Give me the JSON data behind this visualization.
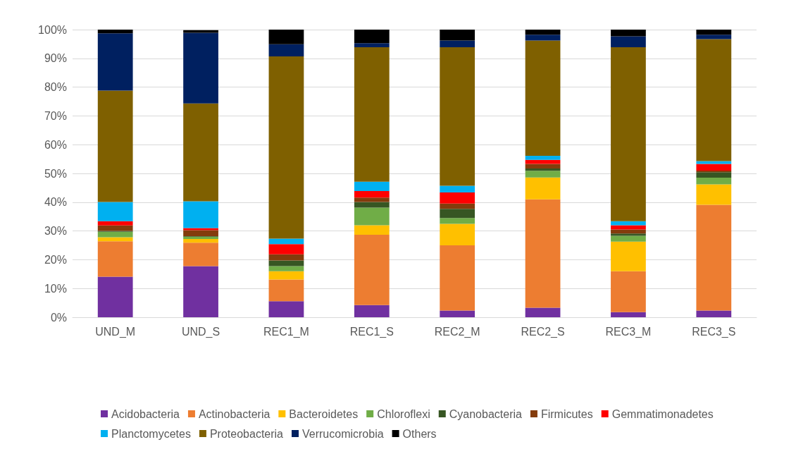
{
  "chart_data": {
    "type": "bar",
    "stacked": true,
    "categories": [
      "UND_M",
      "UND_S",
      "REC1_M",
      "REC1_S",
      "REC2_M",
      "REC2_S",
      "REC3_M",
      "REC3_S"
    ],
    "series": [
      {
        "name": "Acidobacteria",
        "color": "#7030a0",
        "values": [
          14.1,
          17.8,
          5.6,
          4.2,
          2.3,
          3.3,
          1.8,
          2.3
        ]
      },
      {
        "name": "Actinobacteria",
        "color": "#ed7d31",
        "values": [
          12.3,
          8.1,
          7.5,
          24.5,
          22.7,
          37.7,
          14.2,
          36.8
        ]
      },
      {
        "name": "Bacteroidetes",
        "color": "#ffc000",
        "values": [
          1.4,
          1.3,
          2.9,
          3.3,
          7.5,
          7.6,
          10.3,
          7.1
        ]
      },
      {
        "name": "Chloroflexi",
        "color": "#70ad47",
        "values": [
          1.9,
          0.8,
          1.8,
          6.1,
          2.0,
          2.3,
          2.0,
          2.3
        ]
      },
      {
        "name": "Cyanobacteria",
        "color": "#375623",
        "values": [
          0.3,
          0.2,
          1.9,
          2.0,
          3.2,
          0.8,
          0.8,
          1.9
        ]
      },
      {
        "name": "Firmicutes",
        "color": "#843c0c",
        "values": [
          1.9,
          2.1,
          2.2,
          1.5,
          1.8,
          1.6,
          1.4,
          0.6
        ]
      },
      {
        "name": "Gemmatimonadetes",
        "color": "#ff0000",
        "values": [
          1.5,
          0.7,
          3.5,
          2.3,
          3.9,
          1.4,
          1.5,
          2.3
        ]
      },
      {
        "name": "Planctomycetes",
        "color": "#00b0f0",
        "values": [
          6.7,
          9.3,
          1.9,
          3.2,
          2.3,
          1.4,
          1.4,
          1.0
        ]
      },
      {
        "name": "Proteobacteria",
        "color": "#7f6000",
        "values": [
          38.7,
          34.0,
          63.4,
          46.8,
          48.2,
          40.1,
          60.5,
          42.4
        ]
      },
      {
        "name": "Verrucomicrobia",
        "color": "#002060",
        "values": [
          19.9,
          24.6,
          4.2,
          1.4,
          2.3,
          2.0,
          3.8,
          1.5
        ]
      },
      {
        "name": "Others",
        "color": "#000000",
        "values": [
          1.3,
          0.9,
          5.1,
          4.7,
          3.8,
          1.8,
          2.3,
          1.8
        ]
      }
    ],
    "ylim": [
      0,
      100
    ],
    "yticks": [
      {
        "value": 0,
        "label": "0%"
      },
      {
        "value": 10,
        "label": "10%"
      },
      {
        "value": 20,
        "label": "20%"
      },
      {
        "value": 30,
        "label": "30%"
      },
      {
        "value": 40,
        "label": "40%"
      },
      {
        "value": 50,
        "label": "50%"
      },
      {
        "value": 60,
        "label": "60%"
      },
      {
        "value": 70,
        "label": "70%"
      },
      {
        "value": 80,
        "label": "80%"
      },
      {
        "value": 90,
        "label": "90%"
      },
      {
        "value": 100,
        "label": "100%"
      }
    ],
    "grid": "y",
    "legend": "bottom"
  }
}
